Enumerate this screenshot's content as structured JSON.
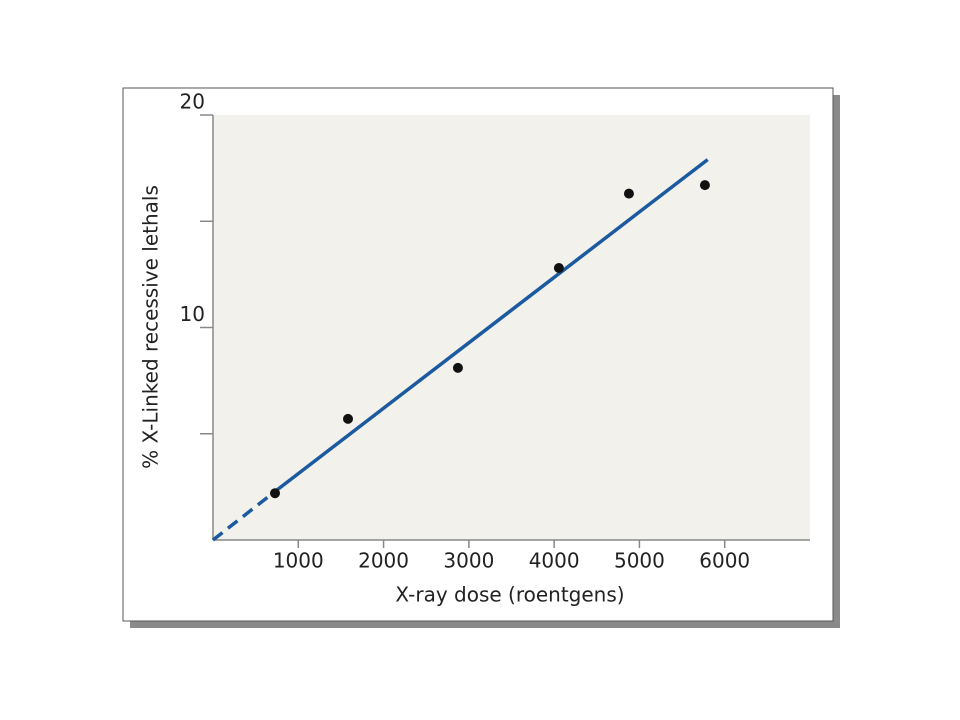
{
  "chart_data": {
    "type": "scatter",
    "x_label": "X-ray dose (roentgens)",
    "y_label": "% X-Linked recessive lethals",
    "x": [
      727,
      1583,
      2872,
      4056,
      4877,
      5768
    ],
    "values": [
      2.2,
      5.7,
      8.1,
      12.8,
      16.3,
      16.7
    ],
    "color": "#111111",
    "fit": [
      {
        "style": "dashed",
        "color": "#1c5aa0",
        "x": [
          0,
          700
        ],
        "y": [
          0,
          2.2
        ]
      },
      {
        "style": "solid",
        "color": "#1c5aa0",
        "x": [
          700,
          5800
        ],
        "y": [
          2.2,
          17.9
        ]
      }
    ],
    "xlim": [
      0,
      7000
    ],
    "ylim": [
      0,
      20
    ],
    "xticks": [
      1000,
      2000,
      3000,
      4000,
      5000,
      6000
    ],
    "yticks": [
      10,
      20
    ],
    "yminor_ticks": [
      5,
      15
    ]
  }
}
